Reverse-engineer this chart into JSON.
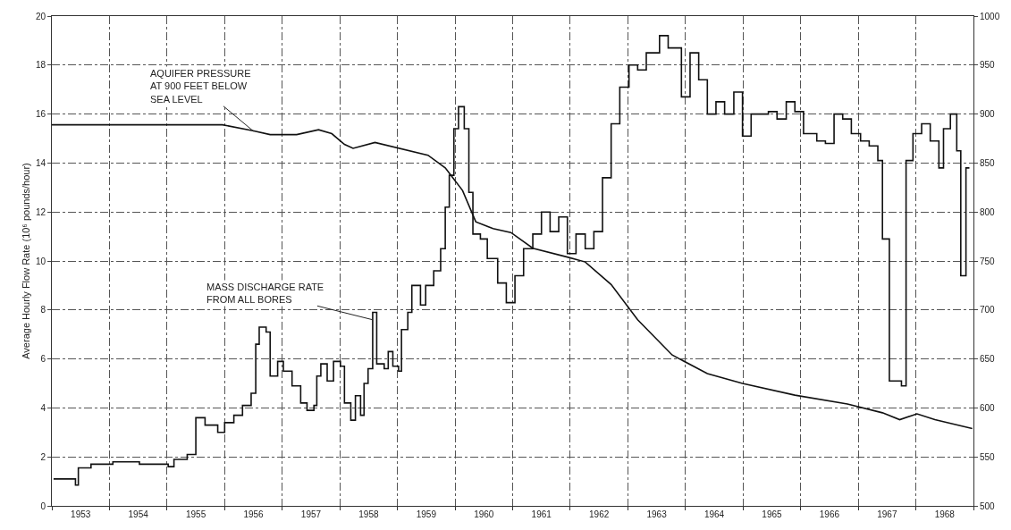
{
  "chart_data": {
    "type": "step",
    "ylabel": "Average Hourly Flow Rate (10⁶ pounds/hour)",
    "xlim": [
      1953,
      1969
    ],
    "xticks": [
      {
        "value": 1953,
        "label": null
      },
      {
        "value": 1953.5,
        "label": "1953"
      },
      {
        "value": 1954,
        "label": null
      },
      {
        "value": 1954.5,
        "label": "1954"
      },
      {
        "value": 1955,
        "label": null
      },
      {
        "value": 1955.5,
        "label": "1955"
      },
      {
        "value": 1956,
        "label": null
      },
      {
        "value": 1956.5,
        "label": "1956"
      },
      {
        "value": 1957,
        "label": null
      },
      {
        "value": 1957.5,
        "label": "1957"
      },
      {
        "value": 1958,
        "label": null
      },
      {
        "value": 1958.5,
        "label": "1958"
      },
      {
        "value": 1959,
        "label": null
      },
      {
        "value": 1959.5,
        "label": "1959"
      },
      {
        "value": 1960,
        "label": null
      },
      {
        "value": 1960.5,
        "label": "1960"
      },
      {
        "value": 1961,
        "label": null
      },
      {
        "value": 1961.5,
        "label": "1961"
      },
      {
        "value": 1962,
        "label": null
      },
      {
        "value": 1962.5,
        "label": "1962"
      },
      {
        "value": 1963,
        "label": null
      },
      {
        "value": 1963.5,
        "label": "1963"
      },
      {
        "value": 1964,
        "label": null
      },
      {
        "value": 1964.5,
        "label": "1964"
      },
      {
        "value": 1965,
        "label": null
      },
      {
        "value": 1965.5,
        "label": "1965"
      },
      {
        "value": 1966,
        "label": null
      },
      {
        "value": 1966.5,
        "label": "1966"
      },
      {
        "value": 1967,
        "label": null
      },
      {
        "value": 1967.5,
        "label": "1967"
      },
      {
        "value": 1968,
        "label": null
      },
      {
        "value": 1968.5,
        "label": "1968"
      },
      {
        "value": 1969,
        "label": null
      }
    ],
    "ylim": [
      0,
      20
    ],
    "yticks": [
      0,
      2,
      4,
      6,
      8,
      10,
      12,
      14,
      16,
      18,
      20
    ],
    "y2lim": [
      500,
      1000
    ],
    "y2ticks": [
      500,
      550,
      600,
      650,
      700,
      750,
      800,
      850,
      900,
      950,
      1000
    ],
    "grid": true,
    "line_style": "solid",
    "marker": "none",
    "series": [
      {
        "color": "#111111",
        "x": [
          1953.03,
          1953.41,
          1953.46,
          1953.68,
          1954.06,
          1954.52,
          1955.02,
          1955.12,
          1955.35,
          1955.5,
          1955.66,
          1955.88,
          1956.0,
          1956.16,
          1956.31,
          1956.46,
          1956.54,
          1956.6,
          1956.72,
          1956.79,
          1956.92,
          1957.02,
          1957.17,
          1957.32,
          1957.43,
          1957.55,
          1957.6,
          1957.67,
          1957.78,
          1957.89,
          1958.01,
          1958.08,
          1958.19,
          1958.27,
          1958.36,
          1958.42,
          1958.49,
          1958.57,
          1958.64,
          1958.77,
          1958.84,
          1958.92,
          1959.02,
          1959.07,
          1959.18,
          1959.25,
          1959.4,
          1959.49,
          1959.63,
          1959.75,
          1959.83,
          1959.9,
          1959.98,
          1960.06,
          1960.16,
          1960.24,
          1960.31,
          1960.44,
          1960.56,
          1960.74,
          1960.89,
          1961.04,
          1961.19,
          1961.35,
          1961.5,
          1961.65,
          1961.8,
          1961.95,
          1962.1,
          1962.26,
          1962.41,
          1962.56,
          1962.71,
          1962.86,
          1963.02,
          1963.17,
          1963.32,
          1963.55,
          1963.7,
          1963.93,
          1964.08,
          1964.23,
          1964.38,
          1964.53,
          1964.68,
          1964.84,
          1964.99,
          1965.14,
          1965.44,
          1965.59,
          1965.75,
          1965.9,
          1966.05,
          1966.28,
          1966.43,
          1966.58,
          1966.73,
          1966.88,
          1967.04,
          1967.19,
          1967.34,
          1967.42,
          1967.54,
          1967.75,
          1967.83,
          1967.95,
          1968.1,
          1968.25,
          1968.4,
          1968.48,
          1968.6,
          1968.71,
          1968.78,
          1968.87,
          1968.93
        ],
        "values": [
          1.1,
          0.85,
          1.55,
          1.7,
          1.8,
          1.7,
          1.6,
          1.9,
          2.1,
          3.6,
          3.3,
          3.0,
          3.4,
          3.7,
          4.1,
          4.6,
          6.6,
          7.3,
          7.1,
          5.3,
          5.9,
          5.5,
          4.9,
          4.2,
          3.9,
          4.1,
          5.3,
          5.8,
          5.1,
          5.9,
          5.7,
          4.2,
          3.5,
          4.5,
          3.7,
          5.0,
          5.6,
          7.9,
          5.8,
          5.6,
          6.3,
          5.7,
          5.5,
          7.2,
          7.9,
          9.0,
          8.2,
          9.0,
          9.6,
          10.5,
          12.2,
          13.5,
          15.4,
          16.3,
          15.4,
          12.8,
          11.1,
          10.9,
          10.1,
          9.1,
          8.3,
          9.4,
          10.5,
          11.1,
          12.0,
          11.2,
          11.8,
          10.3,
          11.1,
          10.5,
          11.2,
          13.4,
          15.6,
          17.1,
          18.0,
          17.8,
          18.5,
          19.2,
          18.7,
          16.7,
          18.5,
          17.4,
          16.0,
          16.5,
          16.0,
          16.9,
          15.1,
          16.0,
          16.1,
          15.8,
          16.5,
          16.1,
          15.2,
          14.9,
          14.8,
          16.0,
          15.8,
          15.2,
          14.9,
          14.7,
          14.1,
          10.9,
          5.1,
          4.9,
          14.1,
          15.2,
          15.6,
          14.9,
          13.8,
          15.4,
          16.0,
          14.5,
          9.4,
          13.8,
          13.8
        ]
      },
      {
        "type": "line",
        "axis": "y2",
        "color": "#111111",
        "x": [
          1953.0,
          1955.96,
          1956.49,
          1956.79,
          1957.25,
          1957.63,
          1957.86,
          1958.08,
          1958.23,
          1958.61,
          1959.53,
          1959.83,
          1960.13,
          1960.36,
          1960.66,
          1960.97,
          1961.35,
          1961.95,
          1962.26,
          1962.71,
          1963.17,
          1963.77,
          1964.38,
          1964.99,
          1965.9,
          1966.81,
          1967.42,
          1967.72,
          1968.02,
          1968.33,
          1968.98
        ],
        "values": [
          889,
          889,
          883,
          879,
          879,
          884,
          880,
          869,
          865,
          871,
          858,
          845,
          822,
          790,
          783,
          779,
          763,
          754,
          749,
          726,
          690,
          654,
          635,
          625,
          613,
          604,
          595,
          588,
          594,
          588,
          579
        ]
      }
    ],
    "annotations": [
      {
        "text": "AQUIFER PRESSURE\nAT 900 FEET BELOW\nSEA LEVEL",
        "x": 1956.5,
        "y": 15.3
      },
      {
        "text": "MASS DISCHARGE RATE\nFROM ALL BORES",
        "x": 1958.57,
        "y": 7.6
      }
    ]
  }
}
